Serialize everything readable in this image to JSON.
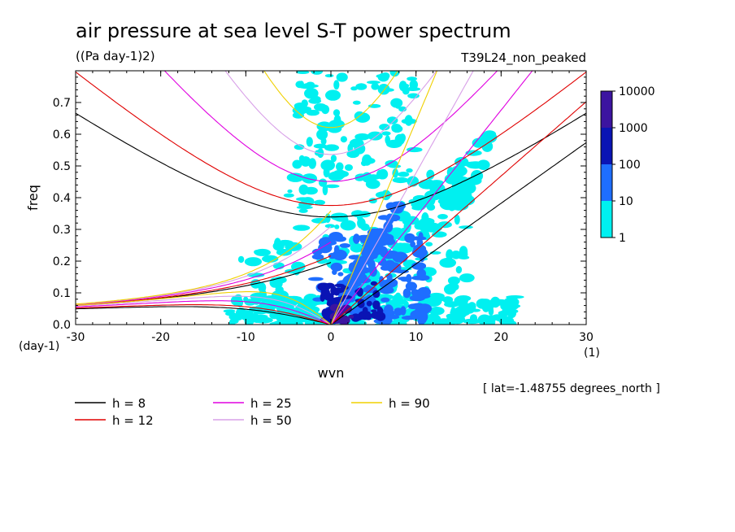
{
  "chart_data": {
    "type": "heatmap",
    "title": "air pressure at sea level S-T power spectrum",
    "units": "((Pa day-1)2)",
    "experiment": "T39L24_non_peaked",
    "xlabel": "wvn",
    "ylabel": "freq",
    "x_unit": "(1)",
    "y_unit": "(day-1)",
    "xlim": [
      -30,
      30
    ],
    "ylim": [
      0,
      0.8
    ],
    "x_ticks": [
      -30,
      -20,
      -10,
      0,
      10,
      20,
      30
    ],
    "x_tick_labels": [
      "-30",
      "-20",
      "-10",
      "0",
      "10",
      "20",
      "30"
    ],
    "y_ticks": [
      0.0,
      0.1,
      0.2,
      0.3,
      0.4,
      0.5,
      0.6,
      0.7
    ],
    "y_tick_labels": [
      "0.0",
      "0.1",
      "0.2",
      "0.3",
      "0.4",
      "0.5",
      "0.6",
      "0.7"
    ],
    "note": "[ lat=-1.48755 degrees_north ]",
    "colorbar": {
      "levels": [
        1,
        10,
        100,
        1000,
        10000
      ],
      "labels": [
        "1",
        "10",
        "100",
        "1000",
        "10000"
      ],
      "colors": [
        "#00f0f0",
        "#1e6eff",
        "#0a14b4",
        "#3c14a0"
      ]
    },
    "dispersion_curves": [
      {
        "name": "h =  8",
        "h": 8,
        "color": "#000000"
      },
      {
        "name": "h = 12",
        "h": 12,
        "color": "#e00000"
      },
      {
        "name": "h = 25",
        "h": 25,
        "color": "#e000e0"
      },
      {
        "name": "h = 50",
        "h": 50,
        "color": "#d8a0e8"
      },
      {
        "name": "h = 90",
        "h": 90,
        "color": "#f0d000"
      }
    ]
  }
}
